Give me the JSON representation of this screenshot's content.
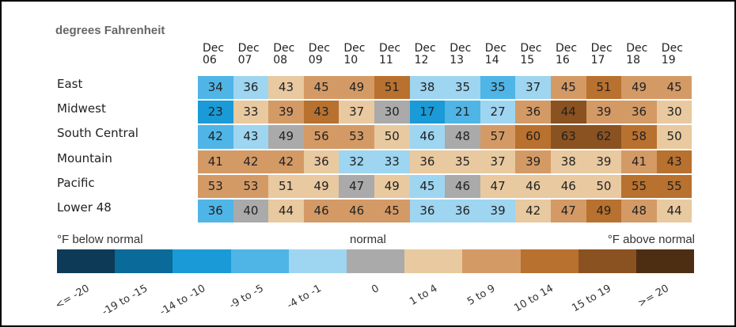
{
  "chart_data": {
    "type": "heatmap",
    "title": "degrees Fahrenheit",
    "x": [
      "Dec 06",
      "Dec 07",
      "Dec 08",
      "Dec 09",
      "Dec 10",
      "Dec 11",
      "Dec 12",
      "Dec 13",
      "Dec 14",
      "Dec 15",
      "Dec 16",
      "Dec 17",
      "Dec 18",
      "Dec 19"
    ],
    "rows": [
      "East",
      "Midwest",
      "South Central",
      "Mountain",
      "Pacific",
      "Lower 48"
    ],
    "values": [
      [
        34,
        36,
        43,
        45,
        49,
        51,
        38,
        35,
        35,
        37,
        45,
        51,
        49,
        45
      ],
      [
        23,
        33,
        39,
        43,
        37,
        30,
        17,
        21,
        27,
        36,
        44,
        39,
        36,
        30
      ],
      [
        42,
        43,
        49,
        56,
        53,
        50,
        46,
        48,
        57,
        60,
        63,
        62,
        58,
        50
      ],
      [
        41,
        42,
        42,
        36,
        32,
        33,
        36,
        35,
        37,
        39,
        38,
        39,
        41,
        43
      ],
      [
        53,
        53,
        51,
        49,
        47,
        49,
        45,
        46,
        47,
        46,
        46,
        50,
        55,
        55
      ],
      [
        36,
        40,
        44,
        46,
        46,
        45,
        36,
        36,
        39,
        42,
        47,
        49,
        48,
        44
      ]
    ],
    "colors": [
      [
        "#4fb5e6",
        "#9ed5f0",
        "#e8c9a0",
        "#d49a66",
        "#d49a66",
        "#b8712e",
        "#9ed5f0",
        "#9ed5f0",
        "#4fb5e6",
        "#9ed5f0",
        "#d49a66",
        "#b8712e",
        "#d49a66",
        "#d49a66"
      ],
      [
        "#1a9ad6",
        "#e8c9a0",
        "#d49a66",
        "#b8712e",
        "#e8c9a0",
        "#aaaaaa",
        "#1a9ad6",
        "#4fb5e6",
        "#9ed5f0",
        "#d49a66",
        "#8a5220",
        "#d49a66",
        "#d49a66",
        "#e8c9a0"
      ],
      [
        "#4fb5e6",
        "#9ed5f0",
        "#aaaaaa",
        "#d49a66",
        "#d49a66",
        "#e8c9a0",
        "#9ed5f0",
        "#aaaaaa",
        "#d49a66",
        "#b8712e",
        "#8a5220",
        "#8a5220",
        "#b8712e",
        "#e8c9a0"
      ],
      [
        "#d49a66",
        "#d49a66",
        "#d49a66",
        "#e8c9a0",
        "#9ed5f0",
        "#9ed5f0",
        "#e8c9a0",
        "#e8c9a0",
        "#e8c9a0",
        "#d49a66",
        "#e8c9a0",
        "#e8c9a0",
        "#d49a66",
        "#b8712e"
      ],
      [
        "#d49a66",
        "#d49a66",
        "#e8c9a0",
        "#e8c9a0",
        "#aaaaaa",
        "#e8c9a0",
        "#9ed5f0",
        "#aaaaaa",
        "#e8c9a0",
        "#e8c9a0",
        "#e8c9a0",
        "#e8c9a0",
        "#b8712e",
        "#b8712e"
      ],
      [
        "#4fb5e6",
        "#aaaaaa",
        "#e8c9a0",
        "#d49a66",
        "#d49a66",
        "#d49a66",
        "#9ed5f0",
        "#9ed5f0",
        "#9ed5f0",
        "#e8c9a0",
        "#d49a66",
        "#b8712e",
        "#d49a66",
        "#e8c9a0"
      ]
    ],
    "legend_left": "°F below normal",
    "legend_center": "normal",
    "legend_right": "°F above normal",
    "legend": [
      {
        "label": "<= -20",
        "color": "#0d3a56"
      },
      {
        "label": "-19 to -15",
        "color": "#0a6a9a"
      },
      {
        "label": "-14 to -10",
        "color": "#1a9ad6"
      },
      {
        "label": "-9 to -5",
        "color": "#4fb5e6"
      },
      {
        "label": "-4 to -1",
        "color": "#9ed5f0"
      },
      {
        "label": "0",
        "color": "#aaaaaa"
      },
      {
        "label": "1 to 4",
        "color": "#e8c9a0"
      },
      {
        "label": "5 to 9",
        "color": "#d49a66"
      },
      {
        "label": "10 to 14",
        "color": "#b8712e"
      },
      {
        "label": "15 to 19",
        "color": "#8a5220"
      },
      {
        "label": ">= 20",
        "color": "#4e2e12"
      }
    ]
  }
}
